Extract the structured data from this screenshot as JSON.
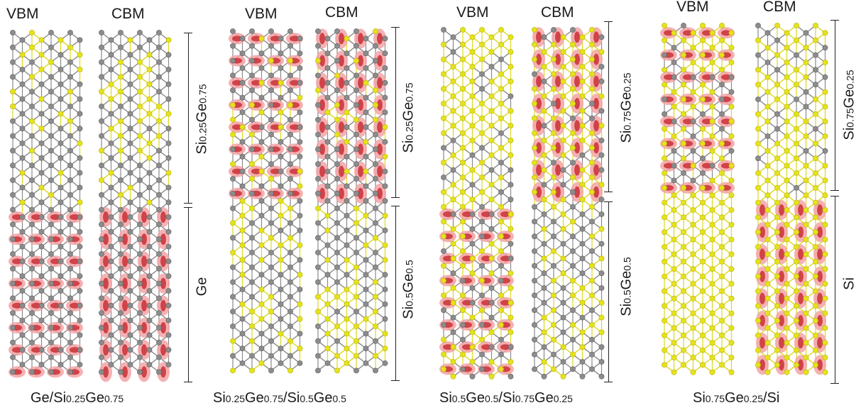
{
  "column_headers": {
    "vbm": "VBM",
    "cbm": "CBM"
  },
  "colors": {
    "si_atom": "#e6e21c",
    "ge_atom": "#8c8c8c",
    "bond_si": "#dcd820",
    "bond_ge": "#8a8a8a",
    "orbital_fill": "#f3a3a6",
    "orbital_core": "#c8282e",
    "bracket": "#222222"
  },
  "panels": [
    {
      "caption": {
        "a": "Ge/Si",
        "b": "0.25",
        "c": "Ge",
        "d": "0.75",
        "e": ""
      },
      "upper_region": {
        "a": "Si",
        "b": "0.25",
        "c": "Ge",
        "d": "0.75"
      },
      "lower_region": {
        "a": "Ge",
        "b": "",
        "c": "",
        "d": ""
      },
      "upper_si_fraction": 0.25,
      "lower_si_fraction": 0.0,
      "vbm_density": "lower",
      "cbm_density": "lower"
    },
    {
      "caption": {
        "a": "Si",
        "b": "0.25",
        "c": "Ge",
        "d": "0.75",
        "e": "/Si",
        "f": "0.5",
        "g": "Ge",
        "h": "0.5"
      },
      "upper_region": {
        "a": "Si",
        "b": "0.25",
        "c": "Ge",
        "d": "0.75"
      },
      "lower_region": {
        "a": "Si",
        "b": "0.5",
        "c": "Ge",
        "d": "0.5"
      },
      "upper_si_fraction": 0.25,
      "lower_si_fraction": 0.5,
      "vbm_density": "upper",
      "cbm_density": "upper"
    },
    {
      "caption": {
        "a": "Si",
        "b": "0.5",
        "c": "Ge",
        "d": "0.5",
        "e": "/Si",
        "f": "0.75",
        "g": "Ge",
        "h": "0.25"
      },
      "upper_region": {
        "a": "Si",
        "b": "0.75",
        "c": "Ge",
        "d": "0.25"
      },
      "lower_region": {
        "a": "Si",
        "b": "0.5",
        "c": "Ge",
        "d": "0.5"
      },
      "upper_si_fraction": 0.75,
      "lower_si_fraction": 0.5,
      "vbm_density": "lower",
      "cbm_density": "upper"
    },
    {
      "caption": {
        "a": "Si",
        "b": "0.75",
        "c": "Ge",
        "d": "0.25",
        "e": "/Si"
      },
      "upper_region": {
        "a": "Si",
        "b": "0.75",
        "c": "Ge",
        "d": "0.25"
      },
      "lower_region": {
        "a": "Si",
        "b": "",
        "c": "",
        "d": ""
      },
      "upper_si_fraction": 0.75,
      "lower_si_fraction": 1.0,
      "vbm_density": "upper",
      "cbm_density": "lower"
    }
  ]
}
